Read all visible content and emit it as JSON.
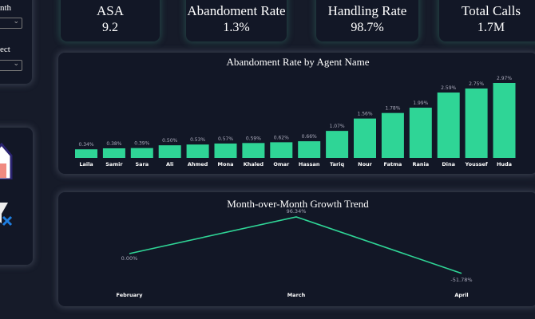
{
  "slicers": [
    {
      "label": "nth"
    },
    {
      "label": "ect"
    }
  ],
  "kpis": [
    {
      "title": "ASA",
      "value": "9.2"
    },
    {
      "title": "Abandoment Rate",
      "value": "1.3%"
    },
    {
      "title": "Handling Rate",
      "value": "98.7%"
    },
    {
      "title": "Total Calls",
      "value": "1.7M"
    }
  ],
  "colors": {
    "bar": "#2fd596",
    "line": "#2fd596"
  },
  "chart_data": [
    {
      "type": "bar",
      "title": "Abandoment Rate by Agent Name",
      "categories": [
        "Laila",
        "Samir",
        "Sara",
        "Ali",
        "Ahmed",
        "Mona",
        "Khaled",
        "Omar",
        "Hassan",
        "Tariq",
        "Nour",
        "Fatma",
        "Rania",
        "Dina",
        "Youssef",
        "Huda"
      ],
      "values": [
        0.34,
        0.38,
        0.39,
        0.5,
        0.53,
        0.57,
        0.59,
        0.62,
        0.66,
        1.07,
        1.56,
        1.78,
        1.99,
        2.59,
        2.75,
        2.97
      ],
      "labels": [
        "0.34%",
        "0.38%",
        "0.39%",
        "0.50%",
        "0.53%",
        "0.57%",
        "0.59%",
        "0.62%",
        "0.66%",
        "1.07%",
        "1.56%",
        "1.78%",
        "1.99%",
        "2.59%",
        "2.75%",
        "2.97%"
      ]
    },
    {
      "type": "line",
      "title": "Month-over-Month Growth Trend",
      "categories": [
        "February",
        "March",
        "April"
      ],
      "values": [
        0.0,
        96.34,
        -51.78
      ],
      "labels": [
        "0.00%",
        "96.34%",
        "-51.78%"
      ]
    }
  ]
}
